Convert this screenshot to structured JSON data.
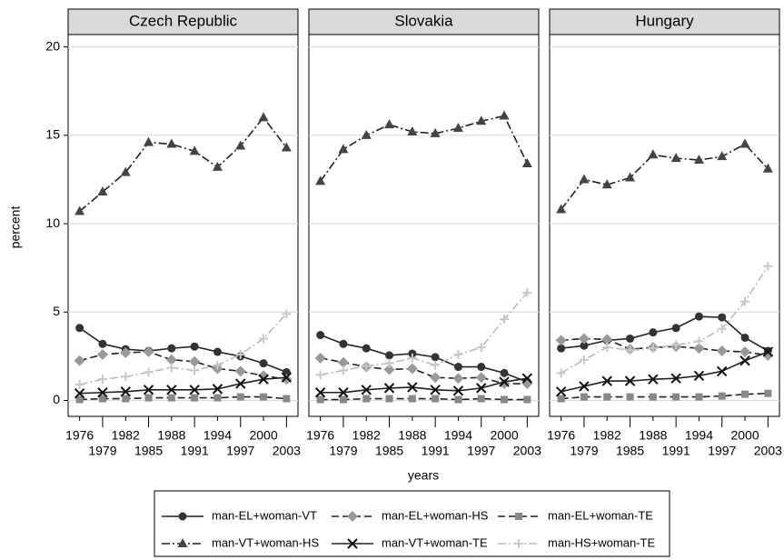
{
  "chart_data": [
    {
      "type": "line",
      "title": "Czech Republic",
      "y_label": "percent",
      "x": [
        1976,
        1979,
        1982,
        1985,
        1988,
        1991,
        1994,
        1997,
        2000,
        2003
      ],
      "xlim": [
        1974.5,
        2004.5
      ],
      "xticks": [
        1976,
        1979,
        1982,
        1985,
        1988,
        1991,
        1994,
        1997,
        2000,
        2003
      ],
      "ylim": [
        -0.9,
        20.7
      ],
      "yticks": [
        0,
        5,
        10,
        15,
        20
      ],
      "grid": true,
      "series": [
        {
          "name": "man-EL+woman-VT",
          "color": "#333333",
          "marker": "circle",
          "line_style": "solid",
          "values": [
            4.1,
            3.2,
            2.9,
            2.8,
            2.95,
            3.05,
            2.75,
            2.5,
            2.1,
            1.6
          ]
        },
        {
          "name": "man-EL+woman-HS",
          "color": "#999999",
          "marker": "diamond",
          "line_style": "dash",
          "values": [
            2.25,
            2.6,
            2.7,
            2.75,
            2.3,
            2.2,
            1.8,
            1.65,
            1.4,
            1.2
          ]
        },
        {
          "name": "man-EL+woman-TE",
          "color": "#888888",
          "marker": "square",
          "line_style": "dash",
          "values": [
            0.05,
            0.1,
            0.1,
            0.15,
            0.15,
            0.15,
            0.15,
            0.2,
            0.2,
            0.1
          ]
        },
        {
          "name": "man-VT+woman-HS",
          "color": "#444444",
          "marker": "triangle",
          "line_style": "dashdot",
          "values": [
            10.7,
            11.8,
            12.9,
            14.6,
            14.5,
            14.1,
            13.2,
            14.4,
            16.0,
            14.3
          ]
        },
        {
          "name": "man-VT+woman-TE",
          "color": "#111111",
          "marker": "x",
          "line_style": "solid",
          "values": [
            0.4,
            0.45,
            0.5,
            0.6,
            0.6,
            0.6,
            0.65,
            0.95,
            1.2,
            1.3
          ]
        },
        {
          "name": "man-HS+woman-TE",
          "color": "#c8c8c8",
          "marker": "plus",
          "line_style": "dashdot",
          "values": [
            0.9,
            1.2,
            1.35,
            1.6,
            1.85,
            1.7,
            2.0,
            2.6,
            3.5,
            4.9
          ]
        }
      ]
    },
    {
      "type": "line",
      "title": "Slovakia",
      "x_label": "years",
      "x": [
        1976,
        1979,
        1982,
        1985,
        1988,
        1991,
        1994,
        1997,
        2000,
        2003
      ],
      "xlim": [
        1974.5,
        2004.5
      ],
      "xticks": [
        1976,
        1979,
        1982,
        1985,
        1988,
        1991,
        1994,
        1997,
        2000,
        2003
      ],
      "ylim": [
        -0.9,
        20.7
      ],
      "yticks": [
        0,
        5,
        10,
        15,
        20
      ],
      "grid": true,
      "series": [
        {
          "name": "man-EL+woman-VT",
          "color": "#333333",
          "marker": "circle",
          "line_style": "solid",
          "values": [
            3.7,
            3.2,
            2.95,
            2.55,
            2.65,
            2.45,
            1.9,
            1.9,
            1.55,
            1.05
          ]
        },
        {
          "name": "man-EL+woman-HS",
          "color": "#999999",
          "marker": "diamond",
          "line_style": "dash",
          "values": [
            2.4,
            2.15,
            1.9,
            1.75,
            1.8,
            1.3,
            1.25,
            1.3,
            0.95,
            0.95
          ]
        },
        {
          "name": "man-EL+woman-TE",
          "color": "#888888",
          "marker": "square",
          "line_style": "dash",
          "values": [
            0.05,
            0.05,
            0.1,
            0.1,
            0.1,
            0.1,
            0.05,
            0.1,
            0.05,
            0.05
          ]
        },
        {
          "name": "man-VT+woman-HS",
          "color": "#444444",
          "marker": "triangle",
          "line_style": "dashdot",
          "values": [
            12.4,
            14.2,
            15.0,
            15.6,
            15.2,
            15.1,
            15.4,
            15.8,
            16.1,
            13.4
          ]
        },
        {
          "name": "man-VT+woman-TE",
          "color": "#111111",
          "marker": "x",
          "line_style": "solid",
          "values": [
            0.45,
            0.45,
            0.6,
            0.7,
            0.75,
            0.6,
            0.55,
            0.7,
            1.05,
            1.25
          ]
        },
        {
          "name": "man-HS+woman-TE",
          "color": "#c8c8c8",
          "marker": "plus",
          "line_style": "dashdot",
          "values": [
            1.45,
            1.7,
            1.95,
            2.1,
            2.4,
            2.0,
            2.6,
            3.0,
            4.6,
            6.1
          ]
        }
      ]
    },
    {
      "type": "line",
      "title": "Hungary",
      "x": [
        1976,
        1979,
        1982,
        1985,
        1988,
        1991,
        1994,
        1997,
        2000,
        2003
      ],
      "xlim": [
        1974.5,
        2004.5
      ],
      "xticks": [
        1976,
        1979,
        1982,
        1985,
        1988,
        1991,
        1994,
        1997,
        2000,
        2003
      ],
      "ylim": [
        -0.9,
        20.7
      ],
      "yticks": [
        0,
        5,
        10,
        15,
        20
      ],
      "grid": true,
      "series": [
        {
          "name": "man-EL+woman-VT",
          "color": "#333333",
          "marker": "circle",
          "line_style": "solid",
          "values": [
            2.95,
            3.1,
            3.4,
            3.5,
            3.85,
            4.1,
            4.75,
            4.7,
            3.55,
            2.8
          ]
        },
        {
          "name": "man-EL+woman-HS",
          "color": "#999999",
          "marker": "diamond",
          "line_style": "dash",
          "values": [
            3.4,
            3.5,
            3.45,
            2.9,
            3.0,
            3.05,
            2.95,
            2.8,
            2.75,
            2.55
          ]
        },
        {
          "name": "man-EL+woman-TE",
          "color": "#888888",
          "marker": "square",
          "line_style": "dash",
          "values": [
            0.1,
            0.2,
            0.2,
            0.2,
            0.2,
            0.2,
            0.2,
            0.25,
            0.35,
            0.4
          ]
        },
        {
          "name": "man-VT+woman-HS",
          "color": "#444444",
          "marker": "triangle",
          "line_style": "dashdot",
          "values": [
            10.8,
            12.5,
            12.2,
            12.6,
            13.9,
            13.7,
            13.6,
            13.8,
            14.5,
            13.1
          ]
        },
        {
          "name": "man-VT+woman-TE",
          "color": "#111111",
          "marker": "x",
          "line_style": "solid",
          "values": [
            0.5,
            0.8,
            1.1,
            1.1,
            1.2,
            1.25,
            1.4,
            1.65,
            2.25,
            2.75
          ]
        },
        {
          "name": "man-HS+woman-TE",
          "color": "#c8c8c8",
          "marker": "plus",
          "line_style": "dashdot",
          "values": [
            1.55,
            2.3,
            3.0,
            2.85,
            2.95,
            3.15,
            3.35,
            4.05,
            5.6,
            7.6
          ]
        }
      ]
    }
  ]
}
